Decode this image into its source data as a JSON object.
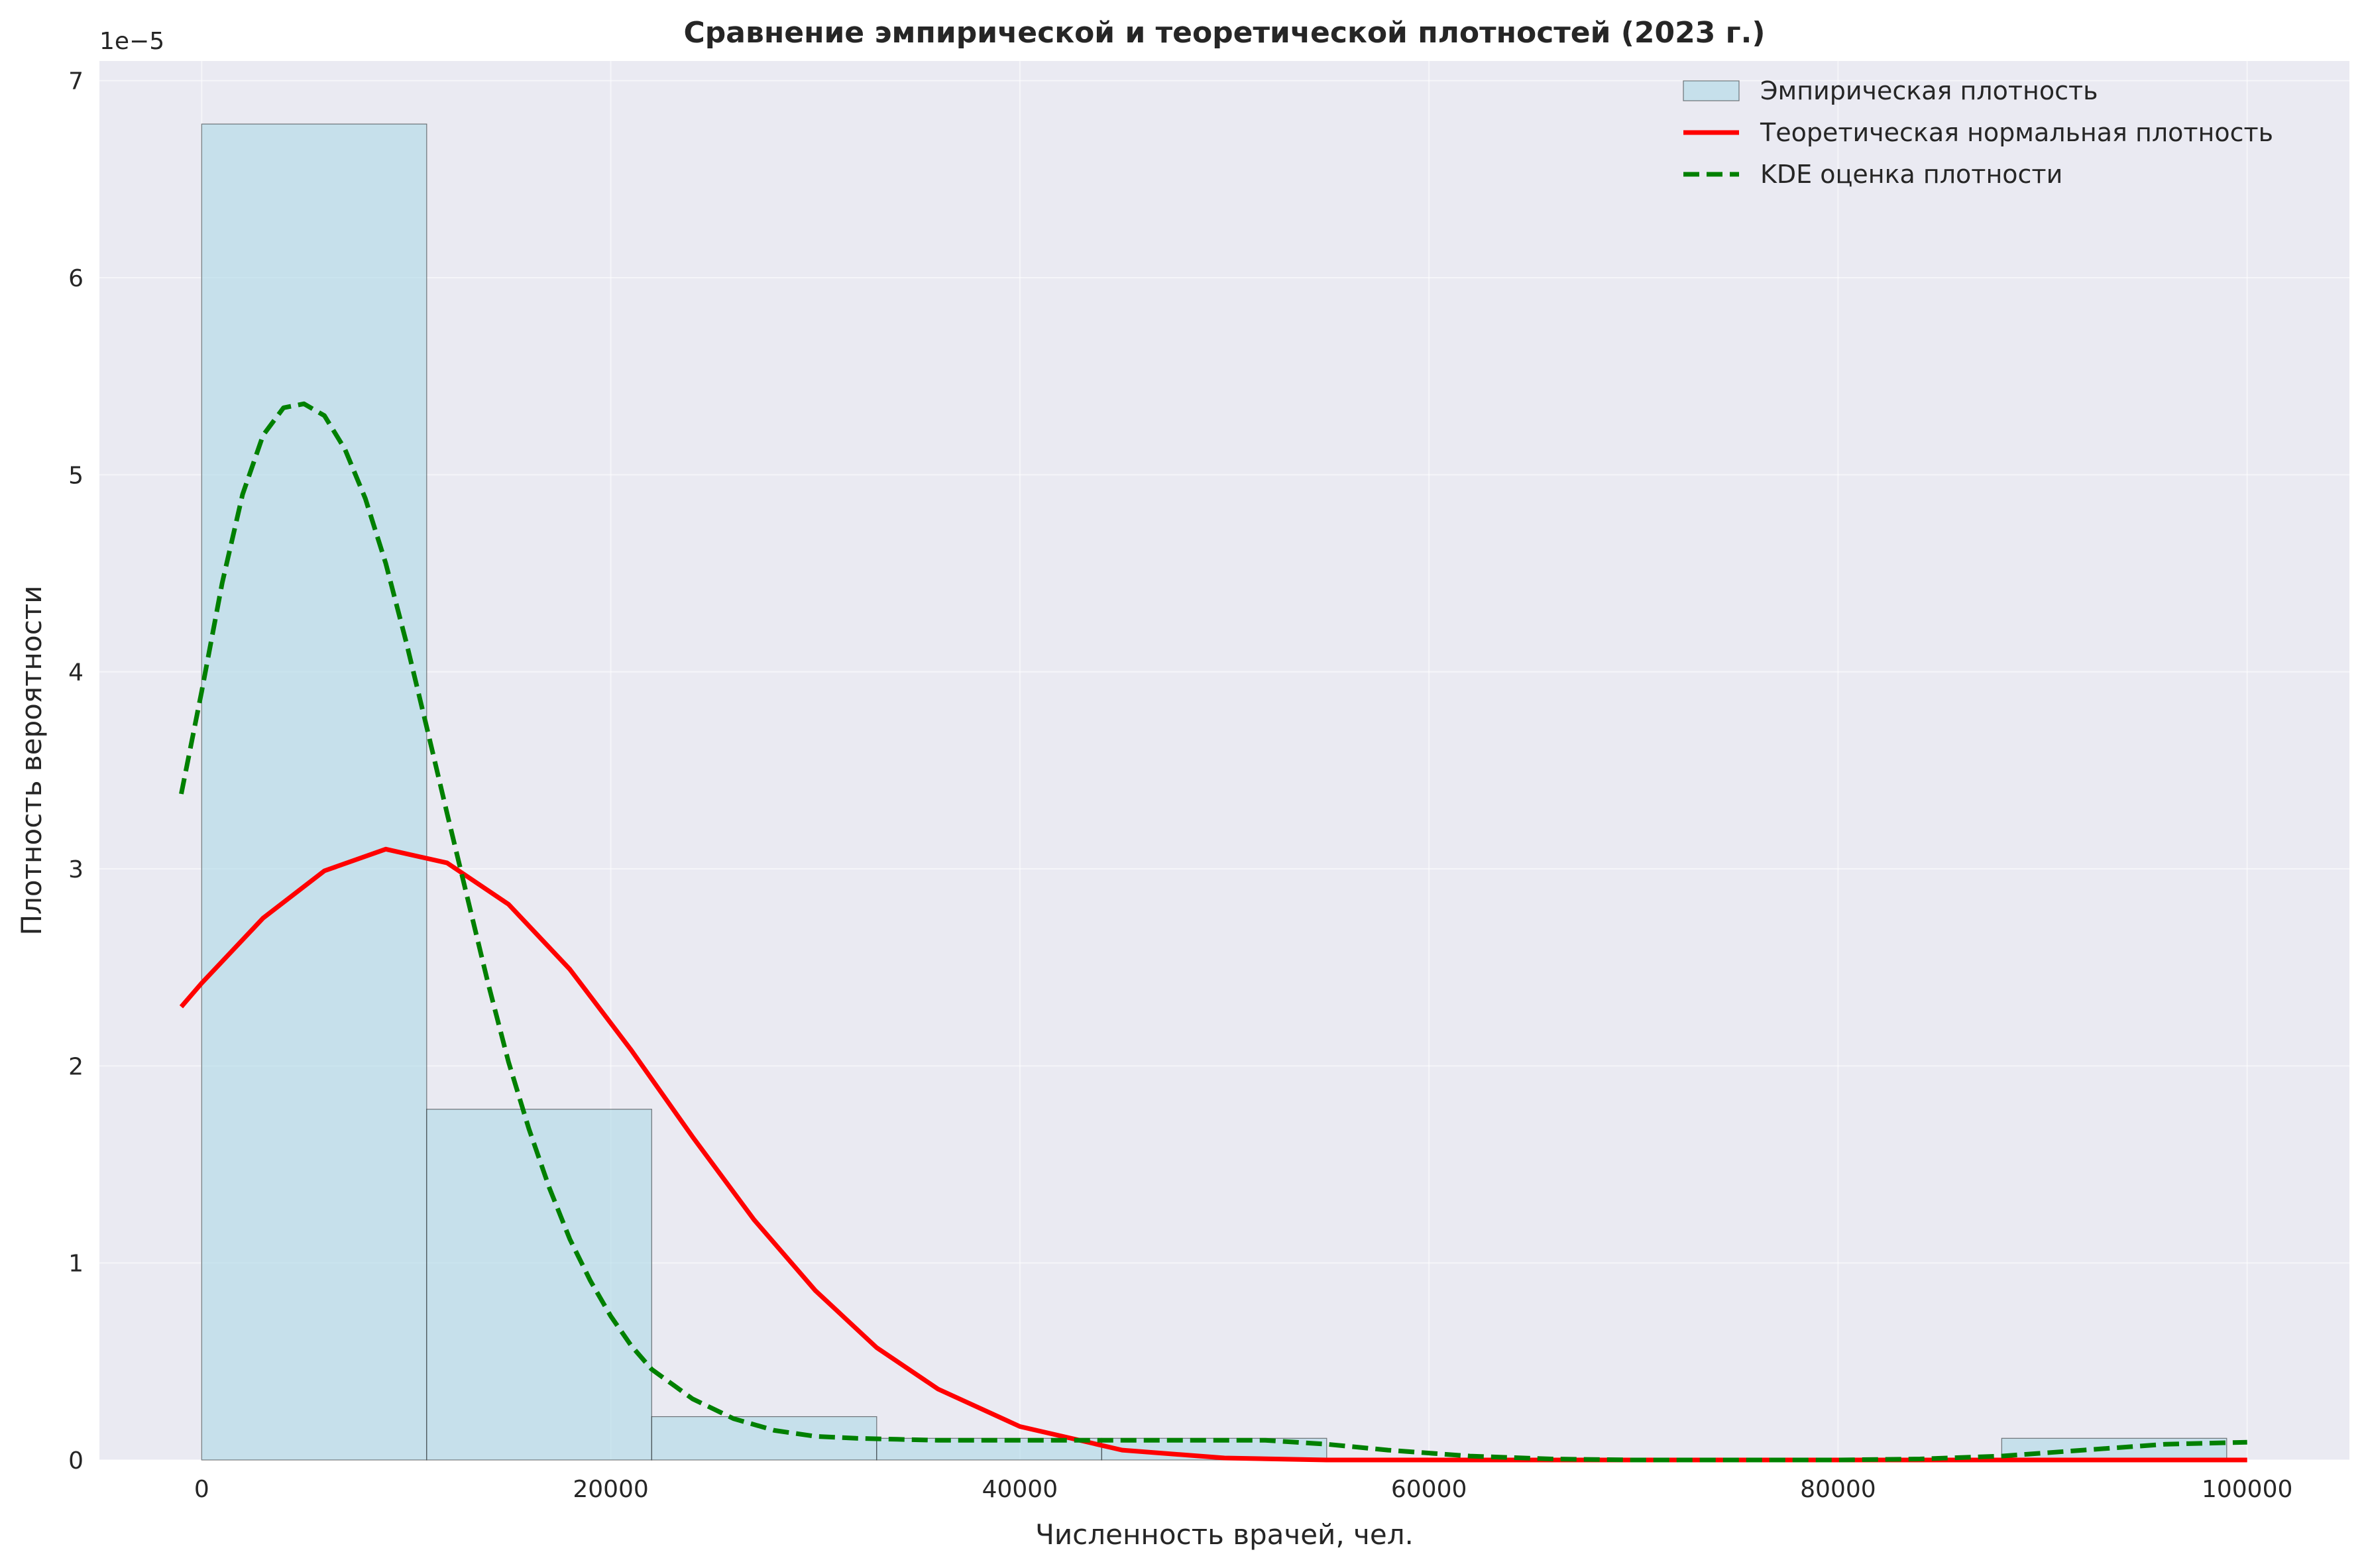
{
  "chart_data": {
    "type": "bar",
    "title": "Сравнение эмпирической и теоретической плотностей (2023 г.)",
    "xlabel": "Численность врачей, чел.",
    "ylabel": "Плотность вероятности",
    "y_offset_label": "1e−5",
    "y_scale": 1e-05,
    "xlim": [
      -5000,
      105000
    ],
    "ylim": [
      0,
      7.1
    ],
    "x_ticks": [
      0,
      20000,
      40000,
      60000,
      80000,
      100000
    ],
    "x_tick_labels": [
      "0",
      "20000",
      "40000",
      "60000",
      "80000",
      "100000"
    ],
    "y_ticks": [
      0,
      1,
      2,
      3,
      4,
      5,
      6,
      7
    ],
    "y_tick_labels": [
      "0",
      "1",
      "2",
      "3",
      "4",
      "5",
      "6",
      "7"
    ],
    "grid": true,
    "legend_position": "top-right",
    "histogram": {
      "name": "Эмпирическая плотность",
      "color": "#add8e6",
      "bins": [
        {
          "x0": 0,
          "x1": 11000,
          "value": 6.78
        },
        {
          "x0": 11000,
          "x1": 22000,
          "value": 1.78
        },
        {
          "x0": 22000,
          "x1": 33000,
          "value": 0.22
        },
        {
          "x0": 33000,
          "x1": 44000,
          "value": 0.11
        },
        {
          "x0": 44000,
          "x1": 55000,
          "value": 0.11
        },
        {
          "x0": 55000,
          "x1": 66000,
          "value": 0
        },
        {
          "x0": 66000,
          "x1": 77000,
          "value": 0
        },
        {
          "x0": 77000,
          "x1": 88000,
          "value": 0
        },
        {
          "x0": 88000,
          "x1": 99000,
          "value": 0.11
        }
      ]
    },
    "series": [
      {
        "name": "Теоретическая нормальная плотность",
        "color": "#ff0000",
        "style": "solid",
        "x": [
          -1000,
          0,
          3000,
          6000,
          9000,
          12000,
          15000,
          18000,
          21000,
          24000,
          27000,
          30000,
          33000,
          36000,
          40000,
          45000,
          50000,
          55000,
          60000,
          70000,
          80000,
          90000,
          100000
        ],
        "y": [
          2.3,
          2.42,
          2.75,
          2.99,
          3.1,
          3.03,
          2.82,
          2.49,
          2.08,
          1.64,
          1.22,
          0.86,
          0.57,
          0.36,
          0.17,
          0.05,
          0.01,
          0.0,
          0.0,
          0.0,
          0.0,
          0.0,
          0.0
        ]
      },
      {
        "name": "KDE оценка плотности",
        "color": "#008000",
        "style": "dashed",
        "x": [
          -1000,
          0,
          1000,
          2000,
          3000,
          4000,
          5000,
          6000,
          7000,
          8000,
          9000,
          10000,
          11000,
          12000,
          13000,
          14000,
          15000,
          16000,
          17000,
          18000,
          19000,
          20000,
          21000,
          22000,
          24000,
          26000,
          28000,
          30000,
          32000,
          34000,
          36000,
          40000,
          44000,
          48000,
          52000,
          55000,
          58000,
          62000,
          66000,
          70000,
          75000,
          80000,
          84000,
          88000,
          92000,
          96000,
          100000
        ],
        "y": [
          3.38,
          3.9,
          4.45,
          4.9,
          5.2,
          5.34,
          5.36,
          5.3,
          5.13,
          4.88,
          4.55,
          4.15,
          3.72,
          3.28,
          2.85,
          2.42,
          2.02,
          1.68,
          1.38,
          1.12,
          0.91,
          0.73,
          0.58,
          0.46,
          0.31,
          0.21,
          0.15,
          0.12,
          0.11,
          0.105,
          0.1,
          0.1,
          0.1,
          0.1,
          0.1,
          0.08,
          0.05,
          0.02,
          0.005,
          0.0,
          0.0,
          0.0,
          0.005,
          0.02,
          0.05,
          0.08,
          0.09
        ]
      }
    ]
  }
}
